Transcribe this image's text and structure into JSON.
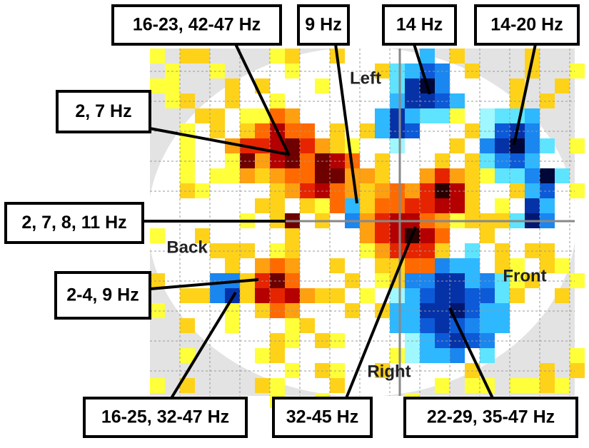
{
  "annotations": [
    {
      "label": "16-23, 42-47 Hz"
    },
    {
      "label": "9 Hz"
    },
    {
      "label": "14 Hz"
    },
    {
      "label": "14-20 Hz"
    },
    {
      "label": "2, 7 Hz"
    },
    {
      "label": "2, 7, 8, 11 Hz"
    },
    {
      "label": "2-4, 9 Hz"
    },
    {
      "label": "16-25, 32-47 Hz"
    },
    {
      "label": "32-45 Hz"
    },
    {
      "label": "22-29, 35-47 Hz"
    }
  ],
  "orientation": {
    "left": "Left",
    "back": "Back",
    "front": "Front",
    "right": "Right"
  }
}
